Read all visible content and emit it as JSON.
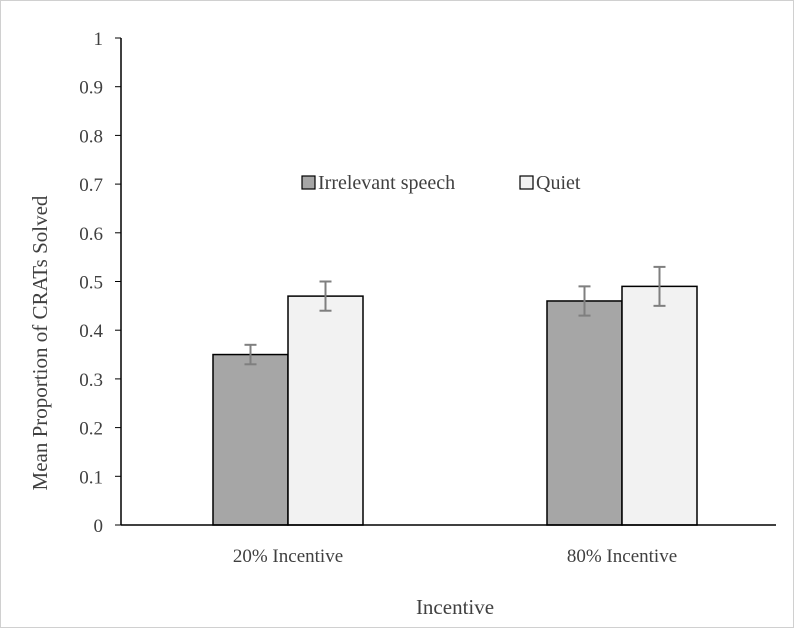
{
  "chart_data": {
    "type": "bar",
    "title": "",
    "xlabel": "Incentive",
    "ylabel": "Mean Proportion of CRATs Solved",
    "categories": [
      "20% Incentive",
      "80% Incentive"
    ],
    "series": [
      {
        "name": "Irrelevant speech",
        "values": [
          0.35,
          0.46
        ],
        "errors": [
          0.02,
          0.03
        ],
        "color": "#a6a6a6"
      },
      {
        "name": "Quiet",
        "values": [
          0.47,
          0.49
        ],
        "errors": [
          0.03,
          0.04
        ],
        "color": "#f2f2f2"
      }
    ],
    "ylim": [
      0,
      1
    ],
    "yticks": [
      0,
      0.1,
      0.2,
      0.3,
      0.4,
      0.5,
      0.6,
      0.7,
      0.8,
      0.9,
      1
    ],
    "ytick_labels": [
      "0",
      "0.1",
      "0.2",
      "0.3",
      "0.4",
      "0.5",
      "0.6",
      "0.7",
      "0.8",
      "0.9",
      "1"
    ],
    "grid": false,
    "legend_position": "inside-top-center",
    "error_bar_color": "#7f7f7f",
    "bar_edge_color": "#000000"
  }
}
